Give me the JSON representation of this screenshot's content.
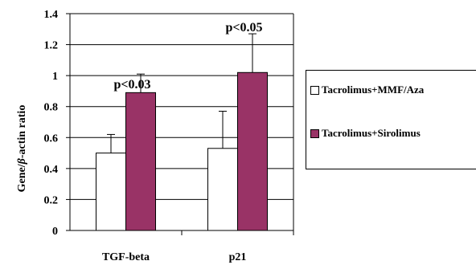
{
  "chart_data": {
    "type": "bar",
    "ylabel_prefix": "Gene/",
    "ylabel_beta": "β",
    "ylabel_suffix": "-actin ratio",
    "categories": [
      "TGF-beta",
      "p21"
    ],
    "ylim": [
      0,
      1.4
    ],
    "yticks": [
      "0",
      "0.2",
      "0.4",
      "0.6",
      "0.8",
      "1",
      "1.2",
      "1.4"
    ],
    "grid": true,
    "legend_position": "right",
    "series": [
      {
        "name": "Tacrolimus+MMF/Aza",
        "values": [
          0.5,
          0.53
        ],
        "errors": [
          0.12,
          0.24
        ],
        "color": "#ffffff"
      },
      {
        "name": "Tacrolimus+Sirolimus",
        "values": [
          0.89,
          1.02
        ],
        "errors": [
          0.12,
          0.25
        ],
        "color": "#993366"
      }
    ],
    "annotations": [
      "p<0.03",
      "p<0.05"
    ]
  }
}
